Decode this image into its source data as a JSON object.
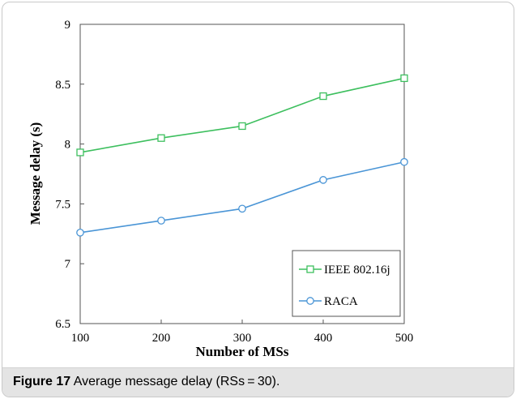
{
  "caption": {
    "label": "Figure 17",
    "text": "Average message delay (RSs = 30)."
  },
  "chart_data": {
    "type": "line",
    "x": [
      100,
      200,
      300,
      400,
      500
    ],
    "x_tick_labels": [
      "100",
      "200",
      "300",
      "400",
      "500"
    ],
    "y_tick_labels": [
      "6.5",
      "7",
      "7.5",
      "8",
      "8.5",
      "9"
    ],
    "xlabel": "Number of MSs",
    "ylabel": "Message delay (s)",
    "xlim": [
      100,
      500
    ],
    "ylim": [
      6.5,
      9
    ],
    "grid": false,
    "legend_position": "bottom-right",
    "series": [
      {
        "name": "IEEE 802.16j",
        "values": [
          7.93,
          8.05,
          8.15,
          8.4,
          8.55
        ],
        "color": "#3dbf5e",
        "marker": "square"
      },
      {
        "name": "RACA",
        "values": [
          7.26,
          7.36,
          7.46,
          7.7,
          7.85
        ],
        "color": "#4a95d6",
        "marker": "circle"
      }
    ]
  }
}
